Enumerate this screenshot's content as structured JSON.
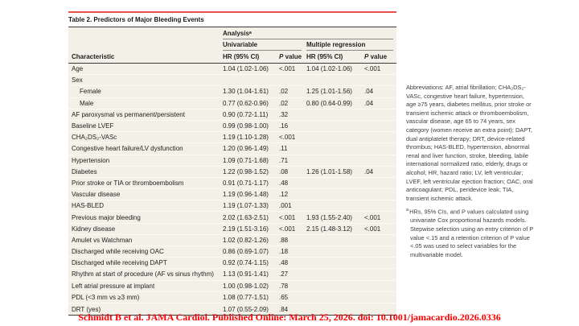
{
  "page": {
    "title": "Table 2. Predictors of Major Bleeding Events",
    "footer": "Schmidt B et al. JAMA Cardiol. Published Online: March 25, 2026. doi: 10.1001/jamacardio.2026.0336"
  },
  "table": {
    "analysis_header": "Analysisᵃ",
    "group_headers": [
      "Univariable",
      "Multiple regression"
    ],
    "col_headers": {
      "characteristic": "Characteristic",
      "hr": "HR (95% CI)",
      "p_italic": "P",
      "p_rest": " value"
    },
    "rows": [
      {
        "label": "Age",
        "indent": false,
        "uni_hr": "1.04 (1.02-1.06)",
        "uni_p": "<.001",
        "mr_hr": "1.04 (1.02-1.06)",
        "mr_p": "<.001"
      },
      {
        "label": "Sex",
        "indent": false,
        "uni_hr": "",
        "uni_p": "",
        "mr_hr": "",
        "mr_p": ""
      },
      {
        "label": "Female",
        "indent": true,
        "uni_hr": "1.30 (1.04-1.61)",
        "uni_p": ".02",
        "mr_hr": "1.25 (1.01-1.56)",
        "mr_p": ".04"
      },
      {
        "label": "Male",
        "indent": true,
        "uni_hr": "0.77 (0.62-0.96)",
        "uni_p": ".02",
        "mr_hr": "0.80 (0.64-0.99)",
        "mr_p": ".04"
      },
      {
        "label": "AF paroxysmal vs permanent/persistent",
        "indent": false,
        "uni_hr": "0.90 (0.72-1.11)",
        "uni_p": ".32",
        "mr_hr": "",
        "mr_p": ""
      },
      {
        "label": "Baseline LVEF",
        "indent": false,
        "uni_hr": "0.99 (0.98-1.00)",
        "uni_p": ".16",
        "mr_hr": "",
        "mr_p": ""
      },
      {
        "label": "CHA₂DS₂-VASc",
        "indent": false,
        "uni_hr": "1.19 (1.10-1.28)",
        "uni_p": "<.001",
        "mr_hr": "",
        "mr_p": ""
      },
      {
        "label": "Congestive heart failure/LV dysfunction",
        "indent": false,
        "uni_hr": "1.20 (0.96-1.49)",
        "uni_p": ".11",
        "mr_hr": "",
        "mr_p": ""
      },
      {
        "label": "Hypertension",
        "indent": false,
        "uni_hr": "1.09 (0.71-1.68)",
        "uni_p": ".71",
        "mr_hr": "",
        "mr_p": ""
      },
      {
        "label": "Diabetes",
        "indent": false,
        "uni_hr": "1.22 (0.98-1.52)",
        "uni_p": ".08",
        "mr_hr": "1.26 (1.01-1.58)",
        "mr_p": ".04"
      },
      {
        "label": "Prior stroke or TIA or thromboembolism",
        "indent": false,
        "uni_hr": "0.91 (0.71-1.17)",
        "uni_p": ".48",
        "mr_hr": "",
        "mr_p": ""
      },
      {
        "label": "Vascular disease",
        "indent": false,
        "uni_hr": "1.19 (0.96-1.48)",
        "uni_p": ".12",
        "mr_hr": "",
        "mr_p": ""
      },
      {
        "label": "HAS-BLED",
        "indent": false,
        "uni_hr": "1.19 (1.07-1.33)",
        "uni_p": ".001",
        "mr_hr": "",
        "mr_p": ""
      },
      {
        "label": "Previous major bleeding",
        "indent": false,
        "uni_hr": "2.02 (1.63-2.51)",
        "uni_p": "<.001",
        "mr_hr": "1.93 (1.55-2.40)",
        "mr_p": "<.001"
      },
      {
        "label": "Kidney disease",
        "indent": false,
        "uni_hr": "2.19 (1.51-3.16)",
        "uni_p": "<.001",
        "mr_hr": "2.15 (1.48-3.12)",
        "mr_p": "<.001"
      },
      {
        "label": "Amulet vs Watchman",
        "indent": false,
        "uni_hr": "1.02 (0.82-1.26)",
        "uni_p": ".88",
        "mr_hr": "",
        "mr_p": ""
      },
      {
        "label": "Discharged while receiving OAC",
        "indent": false,
        "uni_hr": "0.86 (0.69-1.07)",
        "uni_p": ".18",
        "mr_hr": "",
        "mr_p": ""
      },
      {
        "label": "Discharged while receiving DAPT",
        "indent": false,
        "uni_hr": "0.92 (0.74-1.15)",
        "uni_p": ".48",
        "mr_hr": "",
        "mr_p": ""
      },
      {
        "label": "Rhythm at start of procedure (AF vs sinus rhythm)",
        "indent": false,
        "uni_hr": "1.13 (0.91-1.41)",
        "uni_p": ".27",
        "mr_hr": "",
        "mr_p": ""
      },
      {
        "label": "Left atrial pressure at implant",
        "indent": false,
        "uni_hr": "1.00 (0.98-1.02)",
        "uni_p": ".78",
        "mr_hr": "",
        "mr_p": ""
      },
      {
        "label": "PDL (<3 mm vs ≥3 mm)",
        "indent": false,
        "uni_hr": "1.08 (0.77-1.51)",
        "uni_p": ".65",
        "mr_hr": "",
        "mr_p": ""
      },
      {
        "label": "DRT (yes)",
        "indent": false,
        "uni_hr": "1.07 (0.55-2.09)",
        "uni_p": ".84",
        "mr_hr": "",
        "mr_p": ""
      }
    ]
  },
  "notes": {
    "abbreviations": "Abbreviations: AF, atrial fibrillation; CHA₂DS₂-VASc, congestive heart failure, hypertension, age ≥75 years, diabetes mellitus, prior stroke or transient ischemic attack or thromboembolism, vascular disease, age 65 to 74 years, sex category (women receive an extra point); DAPT, dual antiplatelet therapy; DRT, device-related thrombus; HAS-BLED, hypertension, abnormal renal and liver function, stroke, bleeding, labile international normalized ratio, elderly, drugs or alcohol; HR, hazard ratio; LV, left ventricular; LVEF, left ventricular ejection fraction; OAC, oral anticoagulant; PDL, peridevice leak; TIA, transient ischemic attack.",
    "footnote_marker": "a",
    "footnote": "HRs, 95% CIs, and P values calculated using univariate Cox proportional hazards models. Stepwise selection using an entry criterion of P value <.15 and a retention criterion of P value <.05 was used to select variables for the multivariable model."
  },
  "colors": {
    "accent_red": "#e9514b",
    "footer_red": "#fe0000",
    "table_bg": "#f3f1e7",
    "rule_dark": "#3b3b3b",
    "rule_mid": "#8a8a86"
  }
}
